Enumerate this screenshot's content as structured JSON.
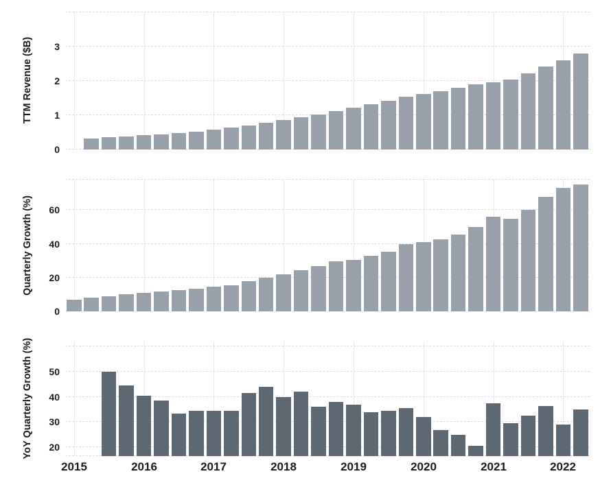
{
  "figure": {
    "background": "#ffffff",
    "bar_color_light": "#98a1aa",
    "bar_color_dark": "#5e6872",
    "grid_dash_color": "#d8dce0",
    "grid_vertical_color": "#e5e8ec",
    "text_color": "#1b1b1b"
  },
  "x_axis": {
    "years": [
      "2015",
      "2016",
      "2017",
      "2018",
      "2019",
      "2020",
      "2021",
      "2022"
    ],
    "quarters_per_year": 4
  },
  "chart_data": [
    {
      "type": "bar",
      "ylabel": "TTM Revenue ($B)",
      "x_unit": "quarter",
      "start_quarter": "2015-Q2",
      "start_slot": 1,
      "values": [
        0.32,
        0.36,
        0.39,
        0.42,
        0.45,
        0.49,
        0.53,
        0.59,
        0.65,
        0.71,
        0.78,
        0.86,
        0.94,
        1.03,
        1.13,
        1.22,
        1.32,
        1.43,
        1.55,
        1.63,
        1.71,
        1.8,
        1.9,
        1.97,
        2.05,
        2.22,
        2.42,
        2.61,
        2.8
      ],
      "ylim": [
        0,
        4.02
      ],
      "yticks": [
        0,
        1,
        2,
        3
      ],
      "gridlines": [
        0,
        1,
        2,
        3,
        4
      ],
      "top_border_dash": false,
      "bottom_border_dash": false,
      "bar_color_key": "bar_color_light",
      "legend": "none",
      "grid": "on"
    },
    {
      "type": "bar",
      "ylabel": "Quarterly Growth (%)",
      "x_unit": "quarter",
      "start_quarter": "2015-Q1",
      "start_slot": 0,
      "values": [
        7,
        8,
        9,
        10,
        11,
        12,
        12.5,
        13.5,
        14.5,
        15.5,
        18,
        20,
        22,
        24.5,
        27,
        29.5,
        30.5,
        33,
        35.5,
        40,
        41,
        42.5,
        45.5,
        50,
        56,
        55,
        60,
        68,
        73,
        75
      ],
      "ylim": [
        0,
        78
      ],
      "yticks": [
        0,
        20,
        40,
        60
      ],
      "gridlines": [
        0,
        20,
        40,
        60
      ],
      "top_border_dash": true,
      "bottom_border_dash": false,
      "bar_color_key": "bar_color_light",
      "legend": "none",
      "grid": "on"
    },
    {
      "type": "bar",
      "ylabel": "YoY Quarterly Growth (%)",
      "x_unit": "quarter",
      "start_quarter": "2015-Q3",
      "start_slot": 2,
      "values": [
        50,
        44.5,
        40.5,
        38.5,
        33.5,
        34.5,
        34.5,
        34.5,
        41.5,
        44,
        40,
        42,
        36,
        38,
        37,
        34,
        34.5,
        35.5,
        32,
        27,
        25,
        20.5,
        37.5,
        29.5,
        32.5,
        36.5,
        29,
        35
      ],
      "ylim": [
        16.5,
        62
      ],
      "yticks": [
        20,
        30,
        40,
        50
      ],
      "gridlines": [
        20,
        30,
        40,
        50,
        60
      ],
      "top_border_dash": false,
      "bottom_border_dash": true,
      "bar_color_key": "bar_color_dark",
      "legend": "none",
      "grid": "on"
    }
  ]
}
